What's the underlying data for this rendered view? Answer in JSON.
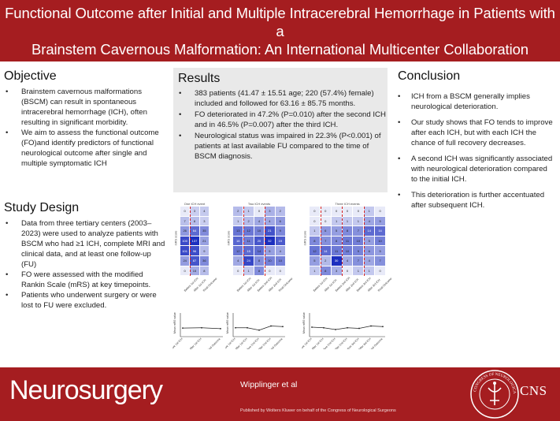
{
  "header": {
    "title_line1": "Functional Outcome after Initial and Multiple Intracerebral Hemorrhage in Patients with a",
    "title_line2": "Brainstem Cavernous Malformation: An International Multicenter Collaboration"
  },
  "objective": {
    "heading": "Objective",
    "bullets": [
      "Brainstem cavernous malformations (BSCM) can result in spontaneous intracerebral hemorrhage (ICH), often resulting in significant morbidity.",
      "We aim to assess the functional outcome (FO)and identify predictors of functional neurological outcome after single and multiple symptomatic ICH"
    ]
  },
  "study_design": {
    "heading": "Study Design",
    "bullets": [
      "Data from three tertiary centers (2003–2023) were used to analyze patients with BSCM who had ≥1 ICH, complete MRI and clinical data, and at least one follow-up (FU)",
      "FO were assessed with the modified Rankin Scale (mRS) at key timepoints.",
      "Patients who underwent surgery or were lost to FU were excluded."
    ]
  },
  "results": {
    "heading": "Results",
    "bullets": [
      "383 patients (41.47 ± 15.51 age; 220 (57.4%) female) included and followed for 63.16 ± 85.75 months.",
      "FO deteriorated in 47.2% (P=0.010) after the second ICH and in 46.5% (P=0.007) after the third ICH.",
      "Neurological status was impaired in 22.3% (P<0.001) of patients at last available FU compared to the time of BSCM diagnosis."
    ]
  },
  "conclusion": {
    "heading": "Conclusion",
    "bullets": [
      "ICH from a BSCM generally implies neurological deterioration.",
      "Our study shows that FO tends to improve after each ICH, but with each ICH the chance of full recovery decreases.",
      "A second ICH was significantly associated with neurological deterioration compared to the initial ICH.",
      "This deterioration is further accentuated after subsequent ICH."
    ]
  },
  "figures": {
    "heatmaps": [
      {
        "title": "One ICH event",
        "ylabel": "mRS score",
        "xlabels": [
          "Before 1st ICH",
          "After 1st ICH",
          "Final Outcome"
        ],
        "rows": [
          [
            "0",
            "3",
            "4"
          ],
          [
            "7",
            "8",
            "3"
          ],
          [
            "26",
            "64",
            "35"
          ],
          [
            "100",
            "137",
            "21"
          ],
          [
            "101",
            "96",
            "9"
          ],
          [
            "24",
            "87",
            "36"
          ],
          [
            "0",
            "15",
            "8"
          ]
        ]
      },
      {
        "title": "Two ICH events",
        "ylabel": "mRS score",
        "xlabels": [
          "Before 1st ICH",
          "After 1st ICH",
          "Before 2nd ICH",
          "After 2nd ICH",
          "Final Outcome"
        ],
        "rows": [
          [
            "2",
            "1",
            "0",
            "3",
            "2"
          ],
          [
            "1",
            "2",
            "4",
            "4",
            "6"
          ],
          [
            "13",
            "12",
            "10",
            "21",
            "9"
          ],
          [
            "16",
            "11",
            "20",
            "32",
            "19"
          ],
          [
            "12",
            "15",
            "14",
            "5",
            "4"
          ],
          [
            "4",
            "24",
            "8",
            "10",
            "10"
          ],
          [
            "0",
            "1",
            "8",
            "0",
            "0"
          ]
        ]
      },
      {
        "title": "Three ICH events",
        "ylabel": "mRS score",
        "xlabels": [
          "Before 1st ICH",
          "After 1st ICH",
          "Before 2nd ICH",
          "After 2nd ICH",
          "Before 3rd ICH",
          "After 3rd ICH",
          "Final Outcome"
        ],
        "rows": [
          [
            "0",
            "0",
            "0",
            "0",
            "0",
            "1",
            "0"
          ],
          [
            "0",
            "0",
            "1",
            "1",
            "1",
            "4",
            "5"
          ],
          [
            "1",
            "6",
            "5",
            "8",
            "7",
            "14",
            "14"
          ],
          [
            "8",
            "7",
            "8",
            "11",
            "10",
            "5",
            "10"
          ],
          [
            "12",
            "14",
            "11",
            "10",
            "9",
            "6",
            "5"
          ],
          [
            "5",
            "2",
            "30",
            "4",
            "7",
            "4",
            "7"
          ],
          [
            "1",
            "8",
            "3",
            "0",
            "1",
            "1",
            "0"
          ]
        ]
      }
    ],
    "line_charts": [
      {
        "ylabel": "Mean mRS value",
        "xlabels": [
          "Before 1st ICH",
          "After 1st ICH",
          "Final Outcome"
        ],
        "values": [
          1.45,
          1.5,
          1.35
        ]
      },
      {
        "ylabel": "Mean mRS value",
        "xlabels": [
          "Before 1st ICH",
          "After 1st ICH",
          "Before 2nd ICH",
          "After 2nd ICH",
          "Final Outcome"
        ],
        "values": [
          1.5,
          1.5,
          1.1,
          1.8,
          1.7
        ]
      },
      {
        "ylabel": "Mean mRS value",
        "xlabels": [
          "Before 1st ICH",
          "After 1st ICH",
          "Before 2nd ICH",
          "After 2nd ICH",
          "Before 3rd ICH",
          "After 3rd ICH",
          "Final Outcome"
        ],
        "values": [
          1.6,
          1.5,
          1.2,
          1.5,
          1.4,
          1.8,
          1.7
        ]
      }
    ]
  },
  "footer": {
    "brand": "Neurosurgery",
    "authors": "Wipplinger et al",
    "publisher": "Published by Wolters Kluwer on behalf of the Congress of Neurological Surgeons",
    "seal_text": "CONGRESS OF NEUROLOGICAL SURGEONS",
    "cns": "CNS"
  },
  "colors": {
    "brand_red": "#a51d20",
    "heat_high": "#1c2fbf",
    "heat_low": "#e8eaf8",
    "divider": "#d62020"
  }
}
